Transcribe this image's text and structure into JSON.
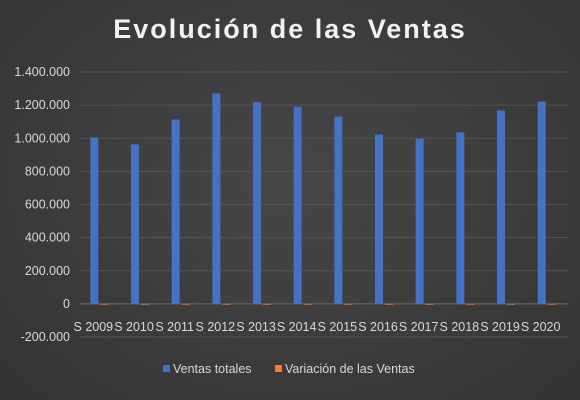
{
  "chart_data": {
    "type": "bar",
    "title": "Evolución de las Ventas",
    "categories": [
      "S 2009",
      "S 2010",
      "S 2011",
      "S 2012",
      "S 2013",
      "S 2014",
      "S 2015",
      "S 2016",
      "S 2017",
      "S 2018",
      "S 2019",
      "S 2020"
    ],
    "series": [
      {
        "name": "Ventas totales",
        "color": "#4472c4",
        "values": [
          1005000,
          963000,
          1113000,
          1270000,
          1217000,
          1190000,
          1130000,
          1022000,
          997000,
          1035000,
          1168000,
          1222000
        ]
      },
      {
        "name": "Variación de las Ventas",
        "color": "#ed7d31",
        "values": [
          0,
          -0.042,
          0.156,
          0.141,
          -0.042,
          -0.022,
          -0.05,
          -0.096,
          -0.024,
          0.038,
          0.128,
          0.046
        ]
      }
    ],
    "ylim": [
      -200000,
      1400000
    ],
    "yticks": [
      -200000,
      0,
      200000,
      400000,
      600000,
      800000,
      1000000,
      1200000,
      1400000
    ],
    "ytick_labels": [
      "-200.000",
      "0",
      "200.000",
      "400.000",
      "600.000",
      "800.000",
      "1.000.000",
      "1.200.000",
      "1.400.000"
    ],
    "grid": true,
    "legend": "bottom",
    "background": "#3c3c3c",
    "text_color": "#d9d9d9"
  }
}
